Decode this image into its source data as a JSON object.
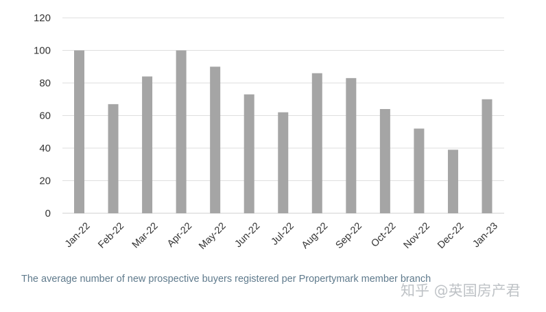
{
  "chart_data": {
    "type": "bar",
    "title": "",
    "xlabel": "",
    "ylabel": "",
    "ylim": [
      0,
      120
    ],
    "yticks": [
      0,
      20,
      40,
      60,
      80,
      100,
      120
    ],
    "grid": true,
    "bar_color": "#a5a5a5",
    "categories": [
      "Jan-22",
      "Feb-22",
      "Mar-22",
      "Apr-22",
      "May-22",
      "Jun-22",
      "Jul-22",
      "Aug-22",
      "Sep-22",
      "Oct-22",
      "Nov-22",
      "Dec-22",
      "Jan-23"
    ],
    "values": [
      100,
      67,
      84,
      100,
      90,
      73,
      62,
      86,
      83,
      64,
      52,
      39,
      70
    ]
  },
  "caption": "The average number of new prospective buyers registered per Propertymark member branch",
  "watermark": "知乎 @英国房产君"
}
